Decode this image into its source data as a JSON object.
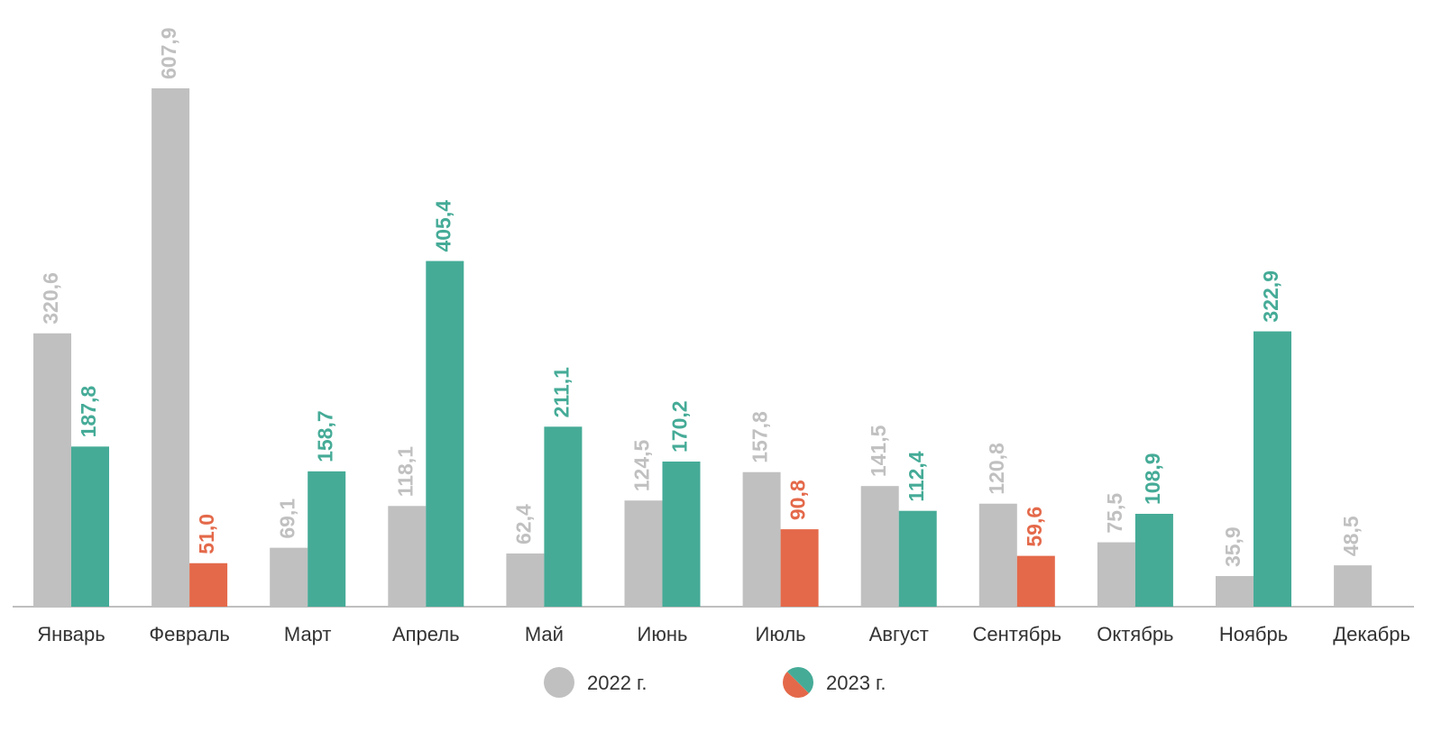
{
  "chart_data": {
    "type": "bar",
    "categories": [
      "Январь",
      "Февраль",
      "Март",
      "Апрель",
      "Май",
      "Июнь",
      "Июль",
      "Август",
      "Сентябрь",
      "Октябрь",
      "Ноябрь",
      "Декабрь"
    ],
    "series": [
      {
        "name": "2022 г.",
        "color": "#c0c0c0",
        "values": [
          320.6,
          607.9,
          69.1,
          118.1,
          62.4,
          124.5,
          157.8,
          141.5,
          120.8,
          75.5,
          35.9,
          48.5
        ],
        "value_labels": [
          "320,6",
          "607,9",
          "69,1",
          "118,1",
          "62,4",
          "124,5",
          "157,8",
          "141,5",
          "120,8",
          "75,5",
          "35,9",
          "48,5"
        ]
      },
      {
        "name": "2023 г.",
        "colors": [
          "#45ab97",
          "#e4694a",
          "#45ab97",
          "#45ab97",
          "#45ab97",
          "#45ab97",
          "#e4694a",
          "#45ab97",
          "#e4694a",
          "#45ab97",
          "#45ab97",
          null
        ],
        "values": [
          187.8,
          51.0,
          158.7,
          405.4,
          211.1,
          170.2,
          90.8,
          112.4,
          59.6,
          108.9,
          322.9,
          null
        ],
        "value_labels": [
          "187,8",
          "51,0",
          "158,7",
          "405,4",
          "211,1",
          "170,2",
          "90,8",
          "112,4",
          "59,6",
          "108,9",
          "322,9",
          null
        ]
      }
    ]
  }
}
